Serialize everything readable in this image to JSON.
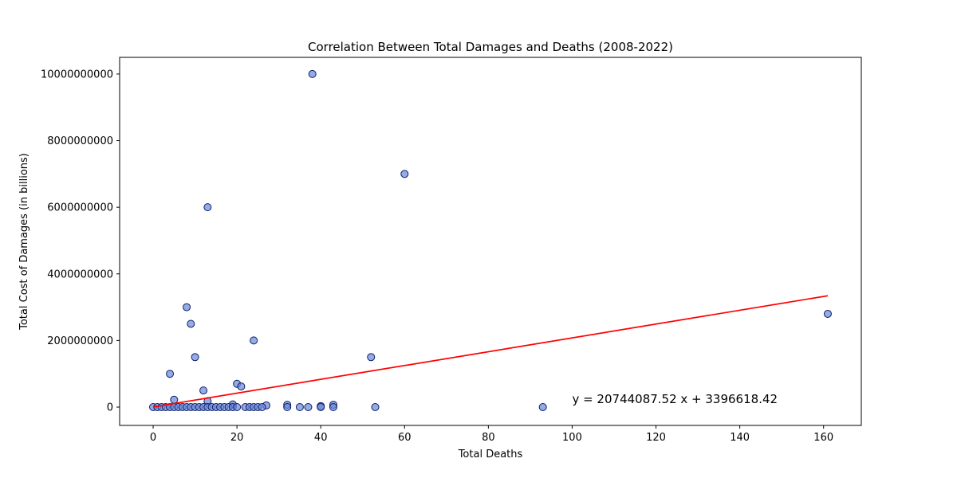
{
  "chart_data": {
    "type": "scatter",
    "title": "Correlation Between Total Damages and Deaths (2008-2022)",
    "xlabel": "Total Deaths",
    "ylabel": "Total Cost of Damages (in billions)",
    "xlim": [
      -8,
      169
    ],
    "ylim": [
      -550000000,
      10500000000
    ],
    "x_ticks": [
      0,
      20,
      40,
      60,
      80,
      100,
      120,
      140,
      160
    ],
    "x_tick_labels": [
      "0",
      "20",
      "40",
      "60",
      "80",
      "100",
      "120",
      "140",
      "160"
    ],
    "y_ticks": [
      0,
      2000000000,
      4000000000,
      6000000000,
      8000000000,
      10000000000
    ],
    "y_tick_labels": [
      "0",
      "2000000000",
      "4000000000",
      "6000000000",
      "8000000000",
      "10000000000"
    ],
    "grid": false,
    "colors": {
      "points": "#6b88d6",
      "point_edge": "#0a1f6e",
      "fit_line": "#ff0000"
    },
    "series": [
      {
        "points": [
          [
            38,
            10000000000
          ],
          [
            60,
            7000000000
          ],
          [
            13,
            6000000000
          ],
          [
            8,
            3000000000
          ],
          [
            9,
            2500000000
          ],
          [
            161,
            2800000000
          ],
          [
            24,
            2000000000
          ],
          [
            10,
            1500000000
          ],
          [
            52,
            1500000000
          ],
          [
            4,
            1000000000
          ],
          [
            20,
            700000000
          ],
          [
            21,
            620000000
          ],
          [
            12,
            500000000
          ],
          [
            5,
            220000000
          ],
          [
            13,
            180000000
          ],
          [
            32,
            70000000
          ],
          [
            43,
            70000000
          ],
          [
            27,
            50000000
          ],
          [
            40,
            30000000
          ],
          [
            19,
            80000000
          ],
          [
            0,
            0
          ],
          [
            1,
            0
          ],
          [
            2,
            0
          ],
          [
            3,
            0
          ],
          [
            4,
            0
          ],
          [
            5,
            0
          ],
          [
            6,
            0
          ],
          [
            7,
            0
          ],
          [
            8,
            0
          ],
          [
            9,
            0
          ],
          [
            10,
            0
          ],
          [
            11,
            0
          ],
          [
            12,
            0
          ],
          [
            13,
            0
          ],
          [
            14,
            0
          ],
          [
            15,
            0
          ],
          [
            16,
            0
          ],
          [
            17,
            0
          ],
          [
            18,
            0
          ],
          [
            19,
            0
          ],
          [
            20,
            0
          ],
          [
            22,
            0
          ],
          [
            23,
            0
          ],
          [
            24,
            0
          ],
          [
            25,
            0
          ],
          [
            26,
            0
          ],
          [
            32,
            0
          ],
          [
            35,
            0
          ],
          [
            37,
            0
          ],
          [
            40,
            0
          ],
          [
            43,
            0
          ],
          [
            53,
            0
          ],
          [
            93,
            0
          ]
        ]
      }
    ],
    "fit_line": {
      "slope": 20744087.52,
      "intercept": 3396618.42,
      "x_range": [
        0,
        161
      ]
    },
    "annotation": {
      "text": "y = 20744087.52 x + 3396618.42",
      "x": 100,
      "y": 120000000
    }
  }
}
